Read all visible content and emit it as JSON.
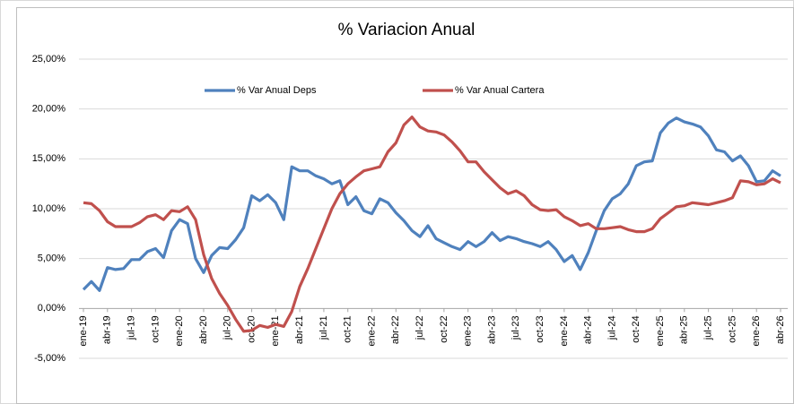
{
  "chart_data": {
    "type": "line",
    "title": "% Variacion Anual",
    "categories": [
      "ene-19",
      null,
      null,
      "abr-19",
      null,
      null,
      "jul-19",
      null,
      null,
      "oct-19",
      null,
      null,
      "ene-20",
      null,
      null,
      "abr-20",
      null,
      null,
      "jul-20",
      null,
      null,
      "oct-20",
      null,
      null,
      "ene-21",
      null,
      null,
      "abr-21",
      null,
      null,
      "jul-21",
      null,
      null,
      "oct-21",
      null,
      null,
      "ene-22",
      null,
      null,
      "abr-22",
      null,
      null,
      "jul-22",
      null,
      null,
      "oct-22",
      null,
      null,
      "ene-23",
      null,
      null,
      "abr-23",
      null,
      null,
      "jul-23",
      null,
      null,
      "oct-23",
      null,
      null,
      "ene-24",
      null,
      null,
      "abr-24",
      null,
      null,
      "jul-24",
      null,
      null,
      "oct-24",
      null,
      null,
      "ene-25",
      null,
      null,
      "abr-25",
      null,
      null,
      "jul-25",
      null,
      null,
      "oct-25",
      null,
      null,
      "ene-26",
      null,
      null,
      "abr-26"
    ],
    "series": [
      {
        "name": "% Var Anual Deps",
        "color": "#4f81bd",
        "values": [
          1.9,
          2.7,
          1.8,
          4.1,
          3.9,
          4.0,
          4.9,
          4.9,
          5.7,
          6.0,
          5.1,
          7.8,
          8.9,
          8.5,
          5.0,
          3.6,
          5.3,
          6.1,
          6.0,
          6.9,
          8.1,
          11.3,
          10.8,
          11.4,
          10.6,
          8.9,
          14.2,
          13.8,
          13.8,
          13.3,
          13.0,
          12.5,
          12.8,
          10.4,
          11.2,
          9.8,
          9.5,
          11.0,
          10.6,
          9.6,
          8.8,
          7.8,
          7.2,
          8.3,
          7.0,
          6.6,
          6.2,
          5.9,
          6.7,
          6.2,
          6.7,
          7.6,
          6.8,
          7.2,
          7.0,
          6.7,
          6.5,
          6.2,
          6.7,
          5.9,
          4.7,
          5.3,
          3.9,
          5.6,
          7.8,
          9.8,
          11.0,
          11.5,
          12.5,
          14.3,
          14.7,
          14.8,
          17.6,
          18.6,
          19.1,
          18.7,
          18.5,
          18.2,
          17.3,
          15.9,
          15.7,
          14.8,
          15.3,
          14.3,
          12.7,
          12.8,
          13.8,
          13.3
        ]
      },
      {
        "name": "% Var Anual Cartera",
        "color": "#c0504d",
        "values": [
          10.6,
          10.5,
          9.8,
          8.7,
          8.2,
          8.2,
          8.2,
          8.6,
          9.2,
          9.4,
          8.9,
          9.8,
          9.7,
          10.2,
          8.9,
          5.4,
          3.0,
          1.5,
          0.3,
          -1.1,
          -2.3,
          -2.2,
          -1.7,
          -1.9,
          -1.6,
          -1.8,
          -0.3,
          2.2,
          4.0,
          6.0,
          8.0,
          10.0,
          11.5,
          12.5,
          13.2,
          13.8,
          14.0,
          14.2,
          15.7,
          16.6,
          18.4,
          19.2,
          18.2,
          17.8,
          17.7,
          17.4,
          16.7,
          15.8,
          14.7,
          14.7,
          13.7,
          12.9,
          12.1,
          11.5,
          11.8,
          11.3,
          10.4,
          9.9,
          9.8,
          9.9,
          9.2,
          8.8,
          8.3,
          8.5,
          8.0,
          8.0,
          8.1,
          8.2,
          7.9,
          7.7,
          7.7,
          8.0,
          9.0,
          9.6,
          10.2,
          10.3,
          10.6,
          10.5,
          10.4,
          10.6,
          10.8,
          11.1,
          12.8,
          12.7,
          12.4,
          12.5,
          13.0,
          12.6
        ]
      }
    ],
    "ylim": [
      -5,
      25
    ],
    "yticks": [
      {
        "value": -5,
        "label": "-5,00%"
      },
      {
        "value": 0,
        "label": "0,00%"
      },
      {
        "value": 5,
        "label": "5,00%"
      },
      {
        "value": 10,
        "label": "10,00%"
      },
      {
        "value": 15,
        "label": "15,00%"
      },
      {
        "value": 20,
        "label": "20,00%"
      },
      {
        "value": 25,
        "label": "25,00%"
      }
    ],
    "grid": true,
    "legend": "top"
  }
}
